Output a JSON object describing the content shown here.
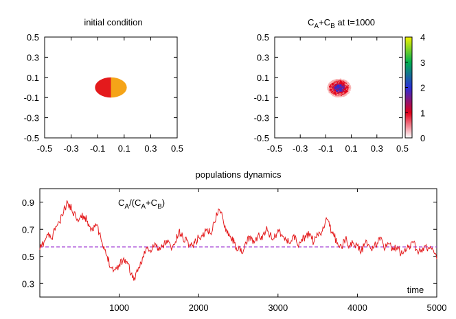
{
  "chart_data": [
    {
      "type": "heatmap",
      "title": "initial condition",
      "xlim": [
        -0.5,
        0.5
      ],
      "ylim": [
        -0.5,
        0.5
      ],
      "xticks": [
        "-0.5",
        "-0.3",
        "-0.1",
        "0.1",
        "0.3",
        "0.5"
      ],
      "yticks": [
        "0.5",
        "0.3",
        "0.1",
        "-0.1",
        "-0.3",
        "-0.5"
      ],
      "grid": false,
      "shape": {
        "type": "disc",
        "center": [
          0.0,
          0.0
        ],
        "radius_x": 0.12,
        "radius_y": 0.1
      },
      "regions": [
        {
          "side": "left",
          "x_range": [
            -0.12,
            0.0
          ],
          "color": "#e41a1c"
        },
        {
          "side": "right",
          "x_range": [
            0.0,
            0.12
          ],
          "color": "#f5a418"
        }
      ]
    },
    {
      "type": "heatmap",
      "title_main": "C",
      "title_sub_a": "A",
      "title_plus": "+C",
      "title_sub_b": "B",
      "title_tail": " at t=1000",
      "xlim": [
        -0.5,
        0.5
      ],
      "ylim": [
        -0.5,
        0.5
      ],
      "xticks": [
        "-0.5",
        "-0.3",
        "-0.1",
        "0.1",
        "0.3",
        "0.5"
      ],
      "yticks": [
        "0.5",
        "0.3",
        "0.1",
        "-0.1",
        "-0.3",
        "-0.5"
      ],
      "grid": false,
      "cloud": {
        "center": [
          0.0,
          0.0
        ],
        "core_radius": 0.05,
        "outer_radius": 0.09
      },
      "colorbar": {
        "range": [
          0,
          4
        ],
        "ticks": [
          "4",
          "3",
          "2",
          "1",
          "0"
        ],
        "stops": [
          {
            "value": 0,
            "color": "#ffffff"
          },
          {
            "value": 1,
            "color": "#e3001b"
          },
          {
            "value": 2,
            "color": "#2a2fd8"
          },
          {
            "value": 3,
            "color": "#00b050"
          },
          {
            "value": 4,
            "color": "#f2f200"
          }
        ]
      }
    },
    {
      "type": "line",
      "title": "populations dynamics",
      "annotation_main": "C",
      "annotation_sub_a": "A",
      "annotation_mid": "/(C",
      "annotation_sub_a2": "A",
      "annotation_plus": "+C",
      "annotation_sub_b": "B",
      "annotation_tail": ")",
      "xlabel": "time",
      "xlim": [
        0,
        5000
      ],
      "ylim": [
        0.2,
        1.0
      ],
      "xticks": [
        "1000",
        "2000",
        "3000",
        "4000",
        "5000"
      ],
      "yticks": [
        "0.9",
        "0.7",
        "0.5",
        "0.3"
      ],
      "grid": false,
      "reference_line": {
        "y": 0.57,
        "color": "#9b30d0",
        "style": "dashed"
      },
      "series": [
        {
          "color": "#e41a1c",
          "x": [
            0,
            50,
            100,
            150,
            200,
            250,
            300,
            350,
            400,
            450,
            500,
            550,
            600,
            650,
            700,
            750,
            800,
            850,
            900,
            950,
            1000,
            1050,
            1100,
            1150,
            1200,
            1250,
            1300,
            1350,
            1400,
            1450,
            1500,
            1550,
            1600,
            1650,
            1700,
            1750,
            1800,
            1850,
            1900,
            1950,
            2000,
            2050,
            2100,
            2150,
            2200,
            2250,
            2300,
            2350,
            2400,
            2450,
            2500,
            2550,
            2600,
            2650,
            2700,
            2750,
            2800,
            2850,
            2900,
            2950,
            3000,
            3050,
            3100,
            3150,
            3200,
            3250,
            3300,
            3350,
            3400,
            3450,
            3500,
            3550,
            3600,
            3650,
            3700,
            3750,
            3800,
            3850,
            3900,
            3950,
            4000,
            4050,
            4100,
            4150,
            4200,
            4250,
            4300,
            4350,
            4400,
            4450,
            4500,
            4550,
            4600,
            4650,
            4700,
            4750,
            4800,
            4850,
            4900,
            4950,
            5000
          ],
          "y": [
            0.55,
            0.6,
            0.66,
            0.63,
            0.72,
            0.75,
            0.83,
            0.9,
            0.85,
            0.8,
            0.78,
            0.8,
            0.76,
            0.7,
            0.74,
            0.67,
            0.56,
            0.5,
            0.42,
            0.4,
            0.44,
            0.48,
            0.46,
            0.37,
            0.33,
            0.42,
            0.5,
            0.56,
            0.53,
            0.6,
            0.54,
            0.58,
            0.62,
            0.57,
            0.59,
            0.68,
            0.64,
            0.62,
            0.58,
            0.6,
            0.64,
            0.65,
            0.7,
            0.67,
            0.75,
            0.85,
            0.79,
            0.7,
            0.65,
            0.6,
            0.55,
            0.52,
            0.6,
            0.65,
            0.6,
            0.66,
            0.62,
            0.7,
            0.66,
            0.63,
            0.7,
            0.66,
            0.62,
            0.6,
            0.66,
            0.58,
            0.63,
            0.64,
            0.67,
            0.6,
            0.66,
            0.68,
            0.77,
            0.72,
            0.66,
            0.6,
            0.57,
            0.63,
            0.58,
            0.6,
            0.58,
            0.54,
            0.6,
            0.58,
            0.56,
            0.6,
            0.64,
            0.56,
            0.59,
            0.55,
            0.57,
            0.52,
            0.56,
            0.58,
            0.6,
            0.55,
            0.53,
            0.58,
            0.56,
            0.55,
            0.48
          ]
        }
      ]
    }
  ]
}
